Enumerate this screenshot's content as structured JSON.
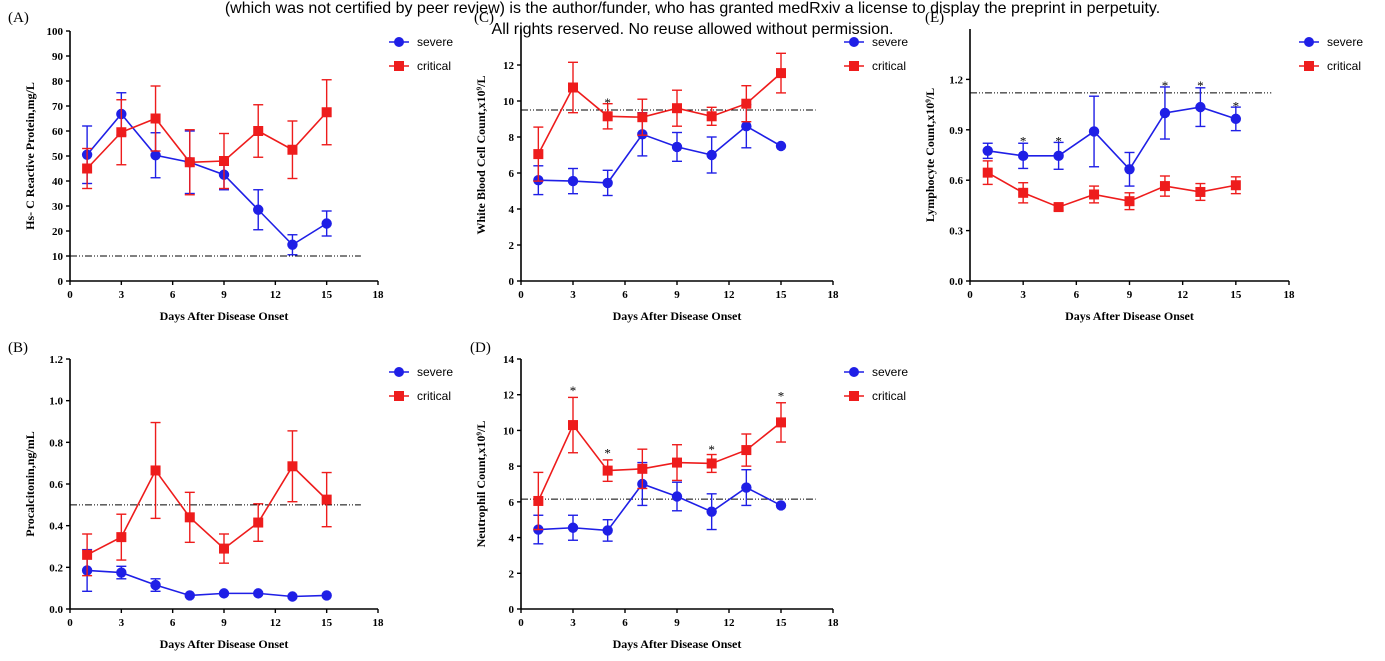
{
  "watermark": {
    "line1": "(which was not certified by peer review) is the author/funder, who has granted medRxiv a license to display the preprint in perpetuity.",
    "line2": "All rights reserved. No reuse allowed without permission."
  },
  "colors": {
    "severe": "#1f1fe6",
    "critical": "#ee1c1c",
    "axis": "#000000"
  },
  "chart_data": [
    {
      "id": "A",
      "type": "line",
      "panel_label": "(A)",
      "xlabel": "Days After Disease Onset",
      "ylabel": "Hs- C Reactive Protein,mg/L",
      "xlim": [
        0,
        18
      ],
      "ylim": [
        0,
        100
      ],
      "xticks": [
        0,
        3,
        6,
        9,
        12,
        15,
        18
      ],
      "yticks": [
        0,
        10,
        20,
        30,
        40,
        50,
        60,
        70,
        80,
        90,
        100
      ],
      "ytick_labels": [
        "0",
        "10",
        "20",
        "30",
        "40",
        "50",
        "60",
        "70",
        "80",
        "90",
        "100"
      ],
      "reference_line": 10,
      "x": [
        1,
        3,
        5,
        7,
        9,
        11,
        13,
        15
      ],
      "series": [
        {
          "name": "severe",
          "marker": "circle",
          "values": [
            50.5,
            66.8,
            50.3,
            47.5,
            42.5,
            28.5,
            14.5,
            23.0
          ],
          "errors": [
            11.5,
            8.5,
            9.0,
            12.5,
            6.0,
            8.0,
            4.0,
            5.0
          ]
        },
        {
          "name": "critical",
          "marker": "square",
          "values": [
            45.0,
            59.5,
            65.0,
            47.5,
            48.0,
            60.0,
            52.5,
            67.5
          ],
          "errors": [
            8.0,
            13.0,
            13.0,
            13.0,
            11.0,
            10.5,
            11.5,
            13.0
          ]
        }
      ],
      "stars": [],
      "legend": [
        "severe",
        "critical"
      ]
    },
    {
      "id": "C",
      "type": "line",
      "panel_label": "(C)",
      "xlabel": "Days After Disease Onset",
      "ylabel": "White Blood Cell Count,x10⁹/L",
      "xlim": [
        0,
        18
      ],
      "ylim": [
        0,
        14
      ],
      "xticks": [
        0,
        3,
        6,
        9,
        12,
        15,
        18
      ],
      "yticks": [
        0,
        2,
        4,
        6,
        8,
        10,
        12
      ],
      "ytick_labels": [
        "0",
        "2",
        "4",
        "6",
        "8",
        "10",
        "12"
      ],
      "reference_line": 9.5,
      "x": [
        1,
        3,
        5,
        7,
        9,
        11,
        13,
        15
      ],
      "series": [
        {
          "name": "severe",
          "marker": "circle",
          "values": [
            5.6,
            5.55,
            5.45,
            8.15,
            7.45,
            7.0,
            8.6,
            7.5
          ],
          "errors": [
            0.8,
            0.7,
            0.7,
            1.2,
            0.8,
            1.0,
            1.2,
            0
          ]
        },
        {
          "name": "critical",
          "marker": "square",
          "values": [
            7.05,
            10.75,
            9.15,
            9.1,
            9.6,
            9.15,
            9.85,
            11.55
          ],
          "errors": [
            1.5,
            1.4,
            0.7,
            1.0,
            1.0,
            0.5,
            1.0,
            1.1
          ]
        }
      ],
      "stars": [
        {
          "x": 5,
          "y": 9.9,
          "label": "*"
        }
      ],
      "legend": [
        "severe",
        "critical"
      ]
    },
    {
      "id": "E",
      "type": "line",
      "panel_label": "(E)",
      "xlabel": "Days After Disease Onset",
      "ylabel": "Lymphocyte Count,x10⁹/L",
      "xlim": [
        0,
        18
      ],
      "ylim": [
        0,
        1.5
      ],
      "xticks": [
        0,
        3,
        6,
        9,
        12,
        15,
        18
      ],
      "yticks": [
        0,
        0.3,
        0.6,
        0.9,
        1.2
      ],
      "ytick_labels": [
        "0.0",
        "0.3",
        "0.6",
        "0.9",
        "1.2"
      ],
      "reference_line": 1.12,
      "x": [
        1,
        3,
        5,
        7,
        9,
        11,
        13,
        15
      ],
      "series": [
        {
          "name": "severe",
          "marker": "circle",
          "values": [
            0.775,
            0.745,
            0.745,
            0.89,
            0.665,
            1.0,
            1.035,
            0.965
          ],
          "errors": [
            0.045,
            0.075,
            0.08,
            0.21,
            0.1,
            0.155,
            0.115,
            0.07
          ]
        },
        {
          "name": "critical",
          "marker": "square",
          "values": [
            0.645,
            0.525,
            0.44,
            0.515,
            0.475,
            0.565,
            0.53,
            0.57
          ],
          "errors": [
            0.07,
            0.06,
            0.02,
            0.05,
            0.05,
            0.06,
            0.05,
            0.05
          ]
        }
      ],
      "stars": [
        {
          "x": 3,
          "y": 0.83,
          "label": "*"
        },
        {
          "x": 5,
          "y": 0.83,
          "label": "*"
        },
        {
          "x": 11,
          "y": 1.16,
          "label": "*"
        },
        {
          "x": 13,
          "y": 1.16,
          "label": "*"
        },
        {
          "x": 15,
          "y": 1.04,
          "label": "*"
        }
      ],
      "legend": [
        "severe",
        "critical"
      ]
    },
    {
      "id": "B",
      "type": "line",
      "panel_label": "(B)",
      "xlabel": "Days After Disease Onset",
      "ylabel": "Procalcitonin,ng/mL",
      "xlim": [
        0,
        18
      ],
      "ylim": [
        0,
        1.2
      ],
      "xticks": [
        0,
        3,
        6,
        9,
        12,
        15,
        18
      ],
      "yticks": [
        0,
        0.2,
        0.4,
        0.6,
        0.8,
        1.0,
        1.2
      ],
      "ytick_labels": [
        "0.0",
        "0.2",
        "0.4",
        "0.6",
        "0.8",
        "1.0",
        "1.2"
      ],
      "reference_line": 0.5,
      "x": [
        1,
        3,
        5,
        7,
        9,
        11,
        13,
        15
      ],
      "series": [
        {
          "name": "severe",
          "marker": "circle",
          "values": [
            0.185,
            0.175,
            0.115,
            0.065,
            0.075,
            0.075,
            0.06,
            0.065
          ],
          "errors": [
            0.1,
            0.03,
            0.03,
            0,
            0,
            0,
            0,
            0
          ]
        },
        {
          "name": "critical",
          "marker": "square",
          "values": [
            0.26,
            0.345,
            0.665,
            0.44,
            0.29,
            0.415,
            0.685,
            0.525
          ],
          "errors": [
            0.1,
            0.11,
            0.23,
            0.12,
            0.07,
            0.09,
            0.17,
            0.13
          ]
        }
      ],
      "stars": [],
      "legend": [
        "severe",
        "critical"
      ]
    },
    {
      "id": "D",
      "type": "line",
      "panel_label": "(D)",
      "xlabel": "Days After Disease Onset",
      "ylabel": "Neutrophil Count,x10⁹/L",
      "xlim": [
        0,
        18
      ],
      "ylim": [
        0,
        14
      ],
      "xticks": [
        0,
        3,
        6,
        9,
        12,
        15,
        18
      ],
      "yticks": [
        0,
        2,
        4,
        6,
        8,
        10,
        12,
        14
      ],
      "ytick_labels": [
        "0",
        "2",
        "4",
        "6",
        "8",
        "10",
        "12",
        "14"
      ],
      "reference_line": 6.15,
      "x": [
        1,
        3,
        5,
        7,
        9,
        11,
        13,
        15
      ],
      "series": [
        {
          "name": "severe",
          "marker": "circle",
          "values": [
            4.45,
            4.55,
            4.4,
            7.0,
            6.3,
            5.45,
            6.8,
            5.8
          ],
          "errors": [
            0.8,
            0.7,
            0.6,
            1.2,
            0.8,
            1.0,
            1.0,
            0
          ]
        },
        {
          "name": "critical",
          "marker": "square",
          "values": [
            6.05,
            10.3,
            7.75,
            7.85,
            8.2,
            8.15,
            8.9,
            10.45
          ],
          "errors": [
            1.6,
            1.55,
            0.6,
            1.1,
            1.0,
            0.5,
            0.9,
            1.1
          ]
        }
      ],
      "stars": [
        {
          "x": 3,
          "y": 12.2,
          "label": "*"
        },
        {
          "x": 5,
          "y": 8.7,
          "label": "*"
        },
        {
          "x": 11,
          "y": 8.9,
          "label": "*"
        },
        {
          "x": 15,
          "y": 11.9,
          "label": "*"
        }
      ],
      "legend": [
        "severe",
        "critical"
      ]
    }
  ]
}
